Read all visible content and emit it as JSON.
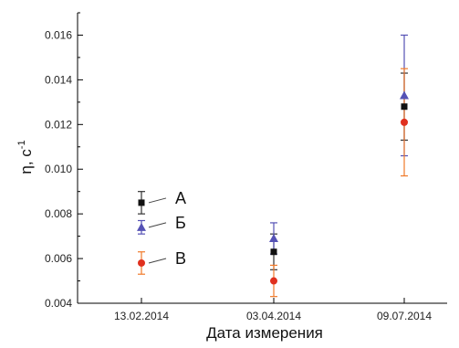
{
  "chart_data": {
    "type": "scatter",
    "xlabel": "Дата измерения",
    "ylabel": "η, с",
    "ylabel_superscript": "-1",
    "categories": [
      "13.02.2014",
      "03.04.2014",
      "09.07.2014"
    ],
    "ylim": [
      0.004,
      0.017
    ],
    "yticks": [
      "0.004",
      "0.006",
      "0.008",
      "0.010",
      "0.012",
      "0.014",
      "0.016"
    ],
    "yticks_values": [
      0.004,
      0.006,
      0.008,
      0.01,
      0.012,
      0.014,
      0.016
    ],
    "grid": false,
    "series": [
      {
        "name": "А",
        "marker": "square",
        "color": "#111111",
        "error_color": "#333333",
        "values": [
          0.0085,
          0.0063,
          0.0128
        ],
        "errors": [
          0.0005,
          0.0008,
          0.0015
        ]
      },
      {
        "name": "Б",
        "marker": "triangle",
        "color": "#5552b5",
        "error_color": "#5552b5",
        "values": [
          0.0074,
          0.0069,
          0.0133
        ],
        "errors": [
          0.0003,
          0.0007,
          0.0027
        ]
      },
      {
        "name": "В",
        "marker": "circle",
        "color": "#e0301e",
        "error_color": "#f07a2a",
        "values": [
          0.0058,
          0.005,
          0.0121
        ],
        "errors": [
          0.0005,
          0.0007,
          0.0024
        ]
      }
    ]
  }
}
